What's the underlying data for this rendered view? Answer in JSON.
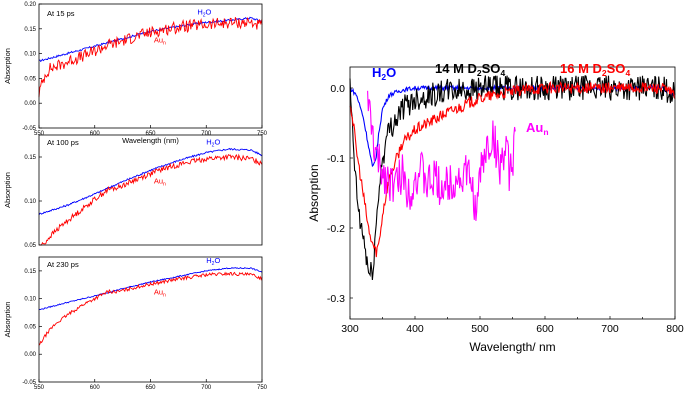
{
  "chart_data": [
    {
      "type": "line",
      "panel_label": "At 15 ps",
      "xlabel": "Wavelength (nm)",
      "ylabel": "Absorption",
      "xlim": [
        550,
        750
      ],
      "ylim": [
        -0.05,
        0.2
      ],
      "xticks": [
        "550",
        "600",
        "650",
        "700",
        "750"
      ],
      "yticks": [
        "0.20",
        "0.15",
        "0.10",
        "0.05",
        "0.00",
        "-0.05"
      ],
      "series": [
        {
          "name": "H2O",
          "color": "#0000ff",
          "noise": 0.002,
          "x": [
            550,
            575,
            600,
            625,
            650,
            675,
            700,
            725,
            740,
            750
          ],
          "values": [
            0.085,
            0.1,
            0.115,
            0.13,
            0.145,
            0.155,
            0.163,
            0.168,
            0.172,
            0.165
          ]
        },
        {
          "name": "Au_n",
          "color": "#ff0000",
          "noise": 0.012,
          "x": [
            550,
            552,
            556,
            560,
            570,
            580,
            590,
            600,
            612,
            620,
            640,
            660,
            680,
            700,
            720,
            740,
            750
          ],
          "values": [
            0.02,
            0.035,
            0.06,
            0.07,
            0.078,
            0.088,
            0.095,
            0.105,
            0.118,
            0.122,
            0.137,
            0.148,
            0.155,
            0.158,
            0.162,
            0.163,
            0.155
          ]
        }
      ],
      "labels": [
        {
          "sub": "2",
          "text": "H",
          "after": "O",
          "series": "H2O"
        },
        {
          "sub": "n",
          "text": "Au",
          "after": "",
          "series": "Au_n"
        }
      ]
    },
    {
      "type": "line",
      "panel_label": "At 100 ps",
      "ylabel": "Absorption",
      "xlim": [
        550,
        750
      ],
      "ylim": [
        0.05,
        0.175
      ],
      "yticks": [
        "0.15",
        "0.10",
        "0.05"
      ],
      "series": [
        {
          "name": "H2O",
          "color": "#0000ff",
          "noise": 0.001,
          "x": [
            550,
            575,
            600,
            625,
            650,
            675,
            700,
            720,
            740,
            750
          ],
          "values": [
            0.085,
            0.095,
            0.108,
            0.122,
            0.135,
            0.146,
            0.155,
            0.159,
            0.158,
            0.152
          ]
        },
        {
          "name": "Au_n",
          "color": "#ff0000",
          "noise": 0.003,
          "x": [
            550,
            555,
            560,
            570,
            580,
            590,
            600,
            612,
            620,
            640,
            660,
            680,
            700,
            720,
            740,
            750
          ],
          "values": [
            0.048,
            0.052,
            0.06,
            0.072,
            0.082,
            0.092,
            0.102,
            0.113,
            0.115,
            0.126,
            0.136,
            0.143,
            0.148,
            0.15,
            0.148,
            0.143
          ]
        }
      ],
      "labels": [
        {
          "sub": "2",
          "text": "H",
          "after": "O",
          "series": "H2O"
        },
        {
          "sub": "n",
          "text": "Au",
          "after": "",
          "series": "Au_n"
        }
      ]
    },
    {
      "type": "line",
      "panel_label": "At 230 ps",
      "ylabel": "Absorption",
      "xlim": [
        550,
        750
      ],
      "ylim": [
        -0.05,
        0.175
      ],
      "xticks": [
        "550",
        "600",
        "650",
        "700",
        "750"
      ],
      "yticks": [
        "0.15",
        "0.10",
        "0.05",
        "0.00",
        "-0.05"
      ],
      "series": [
        {
          "name": "H2O",
          "color": "#0000ff",
          "noise": 0.001,
          "x": [
            550,
            575,
            600,
            625,
            650,
            675,
            700,
            720,
            740,
            750
          ],
          "values": [
            0.08,
            0.093,
            0.105,
            0.118,
            0.13,
            0.14,
            0.15,
            0.155,
            0.155,
            0.148
          ]
        },
        {
          "name": "Au_n",
          "color": "#ff0000",
          "noise": 0.003,
          "x": [
            550,
            553,
            558,
            565,
            575,
            590,
            600,
            612,
            620,
            640,
            660,
            680,
            700,
            720,
            740,
            750
          ],
          "values": [
            0.015,
            0.025,
            0.04,
            0.055,
            0.07,
            0.09,
            0.1,
            0.113,
            0.112,
            0.122,
            0.13,
            0.137,
            0.143,
            0.145,
            0.143,
            0.137
          ]
        }
      ],
      "labels": [
        {
          "sub": "2",
          "text": "H",
          "after": "O",
          "series": "H2O"
        },
        {
          "sub": "n",
          "text": "Au",
          "after": "",
          "series": "Au_n"
        }
      ]
    },
    {
      "type": "line",
      "xlabel": "Wavelength/ nm",
      "ylabel": "Absorption",
      "xlim": [
        300,
        800
      ],
      "ylim": [
        -0.33,
        0.03
      ],
      "xticks": [
        "300",
        "400",
        "500",
        "600",
        "700",
        "800"
      ],
      "yticks": [
        "0.0",
        "-0.1",
        "-0.2",
        "-0.3"
      ],
      "series": [
        {
          "name": "H2O",
          "color": "#0000ff",
          "noise": 0.003,
          "x": [
            300,
            310,
            320,
            330,
            335,
            340,
            345,
            350,
            360,
            380,
            400,
            450,
            500,
            600,
            700,
            780,
            800
          ],
          "values": [
            0.0,
            -0.01,
            -0.04,
            -0.09,
            -0.115,
            -0.1,
            -0.06,
            -0.03,
            -0.01,
            -0.003,
            0.0,
            0.0,
            0.0,
            0.0,
            0.0,
            0.0,
            -0.01
          ]
        },
        {
          "name": "14 M D2SO4",
          "color": "#000000",
          "noise": 0.018,
          "x": [
            300,
            305,
            310,
            315,
            320,
            325,
            330,
            335,
            340,
            345,
            350,
            360,
            380,
            400,
            450,
            500,
            600,
            700,
            780,
            800
          ],
          "values": [
            0.0,
            -0.08,
            -0.15,
            -0.19,
            -0.21,
            -0.24,
            -0.27,
            -0.26,
            -0.2,
            -0.14,
            -0.1,
            -0.06,
            -0.03,
            -0.015,
            -0.005,
            0.0,
            0.0,
            0.0,
            0.0,
            -0.01
          ]
        },
        {
          "name": "16 M D2SO4",
          "color": "#ff0000",
          "noise": 0.008,
          "x": [
            300,
            305,
            310,
            320,
            330,
            340,
            345,
            350,
            360,
            380,
            400,
            450,
            500,
            550,
            600,
            700,
            780,
            800
          ],
          "values": [
            -0.02,
            -0.05,
            -0.09,
            -0.15,
            -0.21,
            -0.235,
            -0.22,
            -0.18,
            -0.13,
            -0.08,
            -0.06,
            -0.035,
            -0.015,
            -0.005,
            0.0,
            0.0,
            0.0,
            -0.01
          ]
        },
        {
          "name": "Au_n",
          "color": "#ff00ff",
          "noise": 0.03,
          "x": [
            327,
            330,
            340,
            350,
            360,
            370,
            380,
            390,
            400,
            410,
            420,
            430,
            440,
            450,
            460,
            470,
            480,
            490,
            495,
            500,
            510,
            520,
            530,
            540,
            545,
            550,
            555
          ],
          "values": [
            0.0,
            -0.04,
            -0.1,
            -0.12,
            -0.13,
            -0.14,
            -0.12,
            -0.15,
            -0.13,
            -0.12,
            -0.14,
            -0.13,
            -0.14,
            -0.14,
            -0.13,
            -0.13,
            -0.12,
            -0.15,
            -0.19,
            -0.12,
            -0.09,
            -0.07,
            -0.11,
            -0.09,
            -0.12,
            -0.12,
            -0.02
          ]
        }
      ],
      "labels": [
        {
          "text": "H",
          "sub": "2",
          "after": "O",
          "series": "H2O"
        },
        {
          "text": "14 M D",
          "sub": "2",
          "after": "SO",
          "sub2": "4",
          "series": "14 M D2SO4"
        },
        {
          "text": "16 M D",
          "sub": "2",
          "after": "SO",
          "sub2": "4",
          "series": "16 M D2SO4"
        },
        {
          "text": "Au",
          "sub": "n",
          "after": "",
          "series": "Au_n"
        }
      ]
    }
  ]
}
